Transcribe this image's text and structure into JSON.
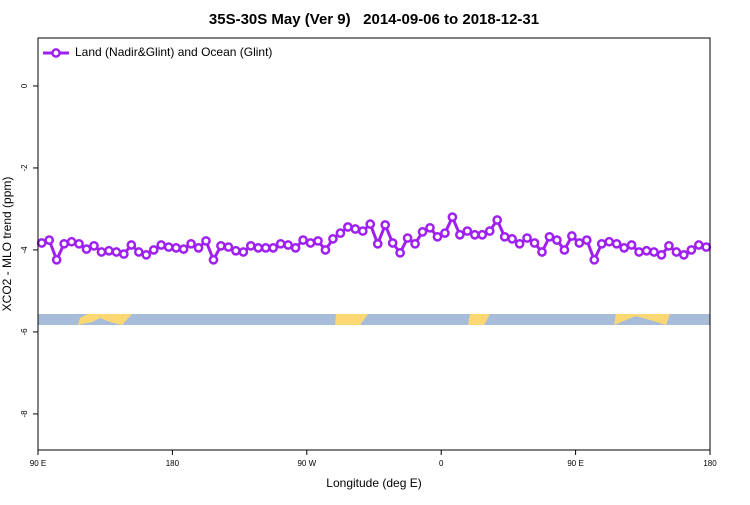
{
  "chart_data": {
    "type": "line",
    "title": "35S-30S May (Ver 9)   2014-09-06 to 2018-12-31",
    "x_label": "Longitude (deg E)",
    "y_label": "XCO2 - MLO trend (ppm)",
    "legend": "top-left",
    "xlim": [
      90,
      540
    ],
    "xticks": [
      {
        "value": 90,
        "label": "90 E"
      },
      180,
      {
        "value": 270,
        "label": "90 W"
      },
      {
        "value": 360,
        "label": "0"
      },
      {
        "value": 450,
        "label": "90 E"
      },
      {
        "value": 540,
        "label": "180"
      }
    ],
    "ylim": [
      -8.88,
      1.17
    ],
    "yticks": [
      0,
      -2,
      -4,
      -6,
      -8
    ],
    "x": [
      92.5,
      97.5,
      102.5,
      107.5,
      112.5,
      117.5,
      122.5,
      127.5,
      132.5,
      137.5,
      142.5,
      147.5,
      152.5,
      157.5,
      162.5,
      167.5,
      172.5,
      177.5,
      182.5,
      187.5,
      192.5,
      197.5,
      202.5,
      207.5,
      212.5,
      217.5,
      222.5,
      227.5,
      232.5,
      237.5,
      242.5,
      247.5,
      252.5,
      257.5,
      262.5,
      267.5,
      272.5,
      277.5,
      282.5,
      287.5,
      292.5,
      297.5,
      302.5,
      307.5,
      312.5,
      317.5,
      322.5,
      327.5,
      332.5,
      337.5,
      342.5,
      347.5,
      352.5,
      357.5,
      362.5,
      367.5,
      372.5,
      377.5,
      382.5,
      387.5,
      392.5,
      397.5,
      402.5,
      407.5,
      412.5,
      417.5,
      422.5,
      427.5,
      432.5,
      437.5,
      442.5,
      447.5,
      452.5,
      457.5,
      462.5,
      467.5,
      472.5,
      477.5,
      482.5,
      487.5,
      492.5,
      497.5,
      502.5,
      507.5,
      512.5,
      517.5,
      522.5,
      527.5,
      532.5,
      537.5
    ],
    "series": [
      {
        "name": "Land (Nadir&Glint) and Ocean (Glint)",
        "color": "#a020f0",
        "values": [
          -3.83,
          -3.76,
          -4.24,
          -3.85,
          -3.8,
          -3.85,
          -3.98,
          -3.9,
          -4.05,
          -4.02,
          -4.05,
          -4.1,
          -3.88,
          -4.05,
          -4.12,
          -4.0,
          -3.88,
          -3.93,
          -3.95,
          -3.98,
          -3.85,
          -3.95,
          -3.78,
          -4.24,
          -3.9,
          -3.93,
          -4.02,
          -4.05,
          -3.9,
          -3.95,
          -3.95,
          -3.95,
          -3.85,
          -3.88,
          -3.95,
          -3.76,
          -3.83,
          -3.78,
          -4.0,
          -3.73,
          -3.59,
          -3.44,
          -3.49,
          -3.54,
          -3.37,
          -3.85,
          -3.39,
          -3.83,
          -4.07,
          -3.71,
          -3.85,
          -3.56,
          -3.46,
          -3.68,
          -3.59,
          -3.2,
          -3.63,
          -3.54,
          -3.63,
          -3.63,
          -3.54,
          -3.27,
          -3.68,
          -3.73,
          -3.85,
          -3.71,
          -3.83,
          -4.05,
          -3.68,
          -3.76,
          -4.0,
          -3.66,
          -3.83,
          -3.76,
          -4.24,
          -3.85,
          -3.8,
          -3.85,
          -3.95,
          -3.88,
          -4.05,
          -4.02,
          -4.05,
          -4.12,
          -3.9,
          -4.05,
          -4.12,
          -4.0,
          -3.88,
          -3.93
        ]
      }
    ]
  }
}
